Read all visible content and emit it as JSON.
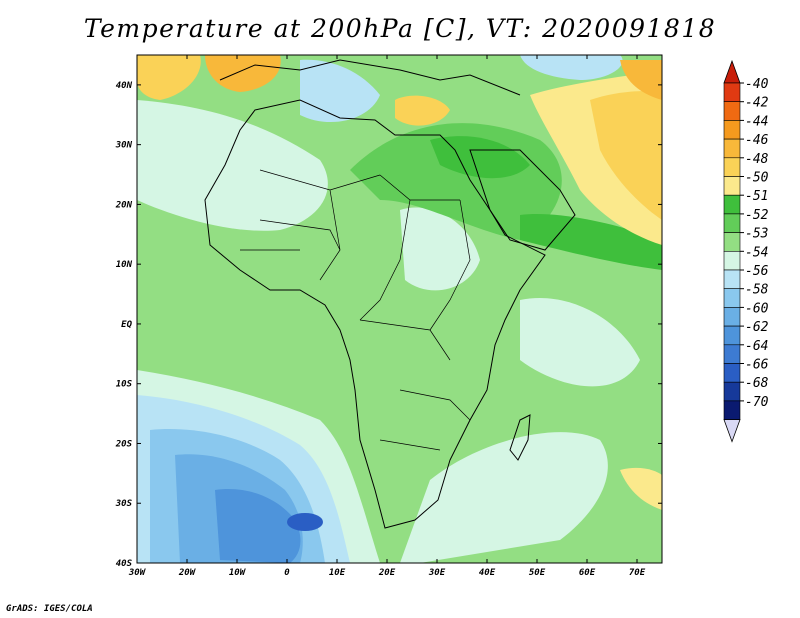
{
  "title": "Temperature at 200hPa [C], VT: 2020091818",
  "credit": "GrADS: IGES/COLA",
  "lat_ticks": [
    "40N",
    "30N",
    "20N",
    "10N",
    "EQ",
    "10S",
    "20S",
    "30S",
    "40S"
  ],
  "lon_ticks": [
    "30W",
    "20W",
    "10W",
    "0",
    "10E",
    "20E",
    "30E",
    "40E",
    "50E",
    "60E",
    "70E"
  ],
  "colorbar": {
    "labels": [
      "-40",
      "-42",
      "-44",
      "-46",
      "-48",
      "-50",
      "-51",
      "-52",
      "-53",
      "-54",
      "-56",
      "-58",
      "-60",
      "-62",
      "-64",
      "-66",
      "-68",
      "-70"
    ],
    "colors": [
      "#e03a12",
      "#f06a12",
      "#f59a1e",
      "#f8b83a",
      "#fad257",
      "#fbe98c",
      "#3fbf3c",
      "#62cd59",
      "#93de83",
      "#d5f6e4",
      "#b8e3f5",
      "#8ac8ee",
      "#6aafe5",
      "#4e94db",
      "#3d7bd2",
      "#2a5ec4",
      "#16399a",
      "#0a1a70"
    ],
    "arrow_top_color": "#c81e0a",
    "arrow_bottom_color": "#d9d9f5"
  }
}
